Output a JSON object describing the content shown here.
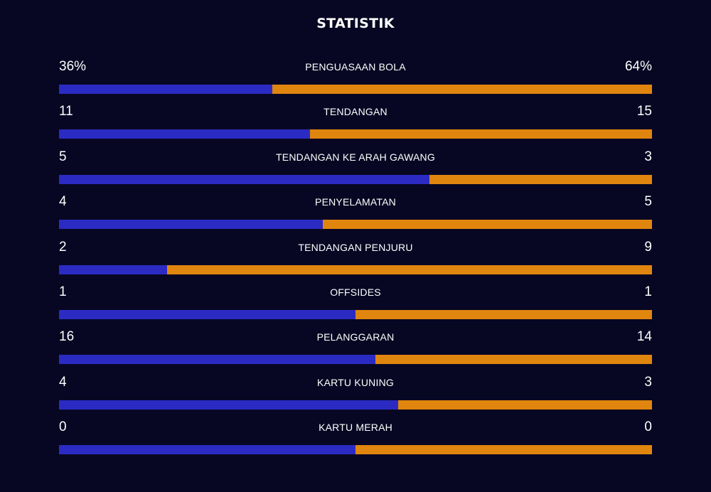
{
  "title": "STATISTIK",
  "colors": {
    "home": "#2b2bc4",
    "away": "#e0850e",
    "background": "#070723"
  },
  "stats": [
    {
      "label": "PENGUASAAN BOLA",
      "home": "36%",
      "away": "64%",
      "home_share": 0.36
    },
    {
      "label": "TENDANGAN",
      "home": "11",
      "away": "15",
      "home_share": 0.4231
    },
    {
      "label": "TENDANGAN KE ARAH GAWANG",
      "home": "5",
      "away": "3",
      "home_share": 0.625
    },
    {
      "label": "PENYELAMATAN",
      "home": "4",
      "away": "5",
      "home_share": 0.4444
    },
    {
      "label": "TENDANGAN PENJURU",
      "home": "2",
      "away": "9",
      "home_share": 0.1818
    },
    {
      "label": "OFFSIDES",
      "home": "1",
      "away": "1",
      "home_share": 0.5
    },
    {
      "label": "PELANGGARAN",
      "home": "16",
      "away": "14",
      "home_share": 0.5333
    },
    {
      "label": "KARTU KUNING",
      "home": "4",
      "away": "3",
      "home_share": 0.5714
    },
    {
      "label": "KARTU MERAH",
      "home": "0",
      "away": "0",
      "home_share": 0.5
    }
  ]
}
